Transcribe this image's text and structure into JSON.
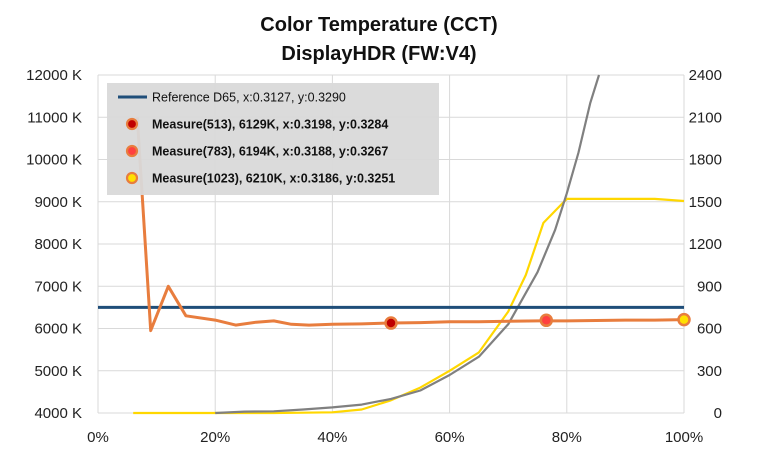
{
  "chart_data": {
    "type": "line",
    "title": "Color Temperature (CCT)",
    "subtitle": "DisplayHDR (FW:V4)",
    "x_ticks": [
      "0%",
      "20%",
      "40%",
      "60%",
      "80%",
      "100%"
    ],
    "y_left_ticks": [
      "4000 K",
      "5000 K",
      "6000 K",
      "7000 K",
      "8000 K",
      "9000 K",
      "10000 K",
      "11000 K",
      "12000 K"
    ],
    "y_right_ticks": [
      "0",
      "300",
      "600",
      "900",
      "1200",
      "1500",
      "1800",
      "2100",
      "2400"
    ],
    "xlim": [
      0,
      100
    ],
    "ylim_left": [
      4000,
      12000
    ],
    "ylim_right": [
      0,
      2400
    ],
    "grid": true,
    "legend_position": "top-left",
    "series": [
      {
        "name": "Reference D65, x:0.3127, y:0.3290",
        "axis": "left",
        "color": "#1f4e79",
        "x": [
          0,
          100
        ],
        "y": [
          6500,
          6500
        ]
      },
      {
        "name": "Measure(513), 6129K, x:0.3198, y:0.3284",
        "axis": "left",
        "color": "#e87d3e",
        "marker": {
          "x": 50,
          "y": 6129,
          "fill": "#c00000"
        },
        "x": [
          6.7,
          9,
          12,
          15,
          20,
          23.5,
          27,
          30,
          33,
          36,
          40,
          45,
          50,
          55,
          60,
          65,
          70,
          75,
          80,
          85,
          90,
          95,
          100
        ],
        "y": [
          11000,
          5950,
          7000,
          6300,
          6200,
          6080,
          6150,
          6180,
          6100,
          6080,
          6100,
          6110,
          6129,
          6140,
          6160,
          6160,
          6170,
          6180,
          6180,
          6190,
          6200,
          6200,
          6210
        ]
      },
      {
        "name": "Measure(783), 6194K, x:0.3188, y:0.3267",
        "axis": "left",
        "color": "#e87d3e",
        "marker": {
          "x": 76.5,
          "y": 6194,
          "fill": "#ff4040"
        }
      },
      {
        "name": "Measure(1023), 6210K, x:0.3186, y:0.3251",
        "axis": "left",
        "color": "#e87d3e",
        "marker": {
          "x": 100,
          "y": 6210,
          "fill": "#ffe000"
        }
      },
      {
        "name": "",
        "axis": "right",
        "color": "#ffd700",
        "x": [
          6,
          10,
          15,
          20,
          25,
          30,
          35,
          40,
          45,
          50,
          55,
          60,
          65,
          70,
          73,
          76,
          80,
          85,
          90,
          95,
          100
        ],
        "y": [
          0,
          0,
          0,
          0,
          0,
          0,
          2,
          5,
          25,
          90,
          180,
          300,
          430,
          720,
          980,
          1350,
          1520,
          1520,
          1520,
          1520,
          1505
        ]
      },
      {
        "name": "",
        "axis": "right",
        "color": "#808080",
        "x": [
          20,
          25,
          30,
          35,
          40,
          45,
          50,
          55,
          60,
          65,
          70,
          75,
          78,
          80,
          82,
          84,
          85.5
        ],
        "y": [
          0,
          10,
          12,
          25,
          40,
          60,
          100,
          160,
          270,
          400,
          630,
          1000,
          1300,
          1560,
          1850,
          2200,
          2400
        ]
      }
    ]
  }
}
